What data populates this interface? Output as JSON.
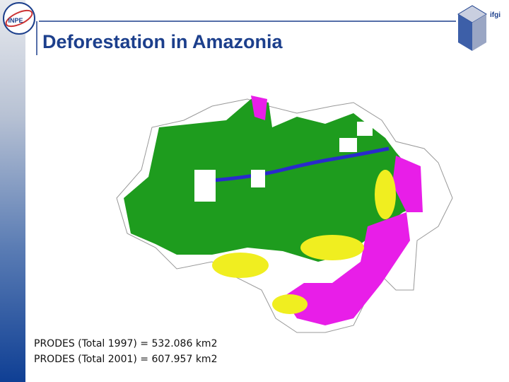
{
  "header": {
    "title": "Deforestation in Amazonia",
    "logo_left": "INPE",
    "logo_right": "ifgi"
  },
  "caption": [
    "PRODES (Total 1997) = 532.086 km2",
    "PRODES (Total 2001) = 607.957 km2"
  ]
}
